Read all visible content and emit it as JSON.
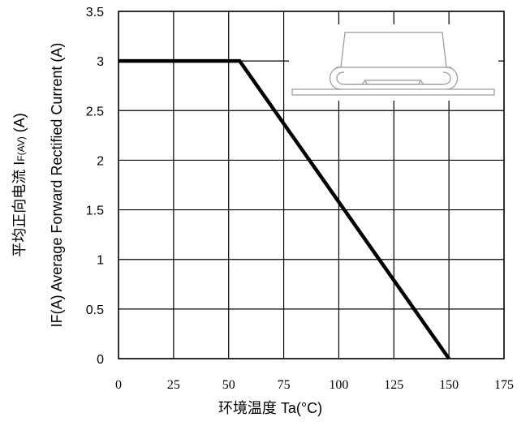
{
  "chart_data": {
    "type": "line",
    "series": [
      {
        "x": [
          0,
          55,
          150
        ],
        "y": [
          3,
          3,
          0
        ]
      }
    ],
    "xlabel": "环境温度 Ta(°C)",
    "ylabel_parts": [
      "IF(A)  Average Forward Rectified Current (A)",
      "平均正向电流    I",
      "F(AV)",
      " (A)"
    ],
    "xlim": [
      0,
      175
    ],
    "ylim": [
      0,
      3.5
    ],
    "x_ticks": [
      "0",
      "25",
      "50",
      "75",
      "100",
      "125",
      "150",
      "175"
    ],
    "y_ticks": [
      "0",
      "0.5",
      "1",
      "1.5",
      "2",
      "2.5",
      "3",
      "3.5"
    ],
    "grid": true,
    "inset": "package-outline-drawing"
  }
}
